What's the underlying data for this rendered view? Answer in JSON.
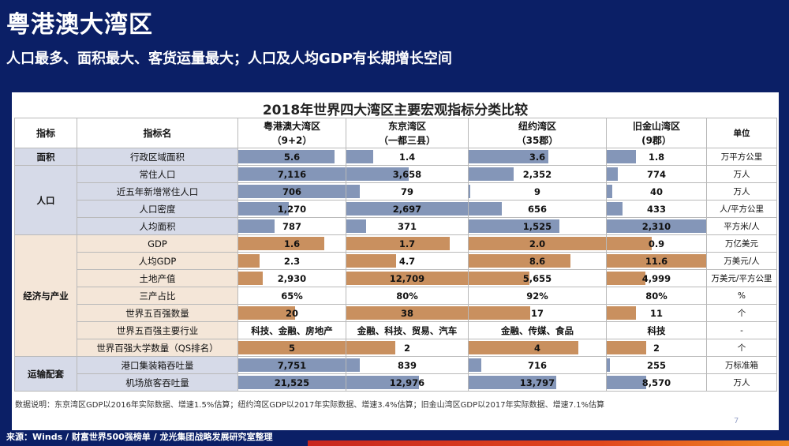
{
  "header": {
    "title": "粤港澳大湾区",
    "subtitle": "人口最多、面积最大、客货运量最大；人口及人均GDP有长期增长空间"
  },
  "table": {
    "title": "2018年世界四大湾区主要宏观指标分类比较",
    "headers": {
      "indicator": "指标",
      "name": "指标名",
      "gba": [
        "粤港澳大湾区",
        "（9+2）"
      ],
      "tokyo": [
        "东京湾区",
        "（一都三县）"
      ],
      "newyork": [
        "纽约湾区",
        "（35郡）"
      ],
      "sf": [
        "旧金山湾区",
        "(9郡）"
      ],
      "unit": "单位"
    },
    "categories": {
      "area": "面积",
      "population": "人口",
      "economy": "经济与产业",
      "transport": "运输配套"
    },
    "rows": [
      {
        "name": "行政区域面积",
        "values": [
          "5.6",
          "1.4",
          "3.6",
          "1.8"
        ],
        "fills": [
          0.9,
          0.22,
          0.58,
          0.29
        ],
        "unit": "万平方公里"
      },
      {
        "name": "常住人口",
        "values": [
          "7,116",
          "3,658",
          "2,352",
          "774"
        ],
        "fills": [
          1.0,
          0.51,
          0.33,
          0.11
        ],
        "unit": "万人"
      },
      {
        "name": "近五年新增常住人口",
        "values": [
          "706",
          "79",
          "9",
          "40"
        ],
        "fills": [
          1.0,
          0.11,
          0.013,
          0.057
        ],
        "unit": "万人"
      },
      {
        "name": "人口密度",
        "values": [
          "1,270",
          "2,697",
          "656",
          "433"
        ],
        "fills": [
          0.47,
          1.0,
          0.24,
          0.16
        ],
        "unit": "人/平方公里"
      },
      {
        "name": "人均面积",
        "values": [
          "787",
          "371",
          "1,525",
          "2,310"
        ],
        "fills": [
          0.34,
          0.16,
          0.66,
          1.0
        ],
        "unit": "平方米/人"
      },
      {
        "name": "GDP",
        "values": [
          "1.6",
          "1.7",
          "2.0",
          "0.9"
        ],
        "fills": [
          0.8,
          0.85,
          1.0,
          0.45
        ],
        "unit": "万亿美元"
      },
      {
        "name": "人均GDP",
        "values": [
          "2.3",
          "4.7",
          "8.6",
          "11.6"
        ],
        "fills": [
          0.2,
          0.41,
          0.74,
          1.0
        ],
        "unit": "万美元/人"
      },
      {
        "name": "土地产值",
        "values": [
          "2,930",
          "12,709",
          "5,655",
          "4,999"
        ],
        "fills": [
          0.23,
          1.0,
          0.44,
          0.39
        ],
        "unit": "万美元/平方公里"
      },
      {
        "name": "三产占比",
        "values": [
          "65%",
          "80%",
          "92%",
          "80%"
        ],
        "fills": [
          0,
          0,
          0,
          0
        ],
        "unit": "%"
      },
      {
        "name": "世界五百强数量",
        "values": [
          "20",
          "38",
          "17",
          "11"
        ],
        "fills": [
          0.53,
          1.0,
          0.45,
          0.29
        ],
        "unit": "个"
      },
      {
        "name": "世界五百强主要行业",
        "values": [
          "科技、金融、房地产",
          "金融、科技、贸易、汽车",
          "金融、传媒、食品",
          "科技"
        ],
        "fills": [
          0,
          0,
          0,
          0
        ],
        "unit": "-"
      },
      {
        "name": "世界百强大学数量（QS排名）",
        "values": [
          "5",
          "2",
          "4",
          "2"
        ],
        "fills": [
          1.0,
          0.4,
          0.8,
          0.4
        ],
        "unit": "个"
      },
      {
        "name": "港口集装箱吞吐量",
        "values": [
          "7,751",
          "839",
          "716",
          "255"
        ],
        "fills": [
          1.0,
          0.11,
          0.09,
          0.03
        ],
        "unit": "万标准箱"
      },
      {
        "name": "机场旅客吞吐量",
        "values": [
          "21,525",
          "12,976",
          "13,797",
          "8,570"
        ],
        "fills": [
          1.0,
          0.6,
          0.64,
          0.4
        ],
        "unit": "万人"
      }
    ],
    "note": "数据说明：东京湾区GDP以2016年实际数据、增速1.5%估算；纽约湾区GDP以2017年实际数据、增速3.4%估算；旧金山湾区GDP以2017年实际数据、增速7.1%估算"
  },
  "footer": {
    "source": "来源：Winds / 财富世界500强榜单 / 龙光集团战略发展研究室整理",
    "page": "7"
  },
  "colors": {
    "background": "#0b1f66",
    "bar_blue": "#8496b8",
    "bar_orange": "#c9905f",
    "footer_red": "#c8261e"
  }
}
